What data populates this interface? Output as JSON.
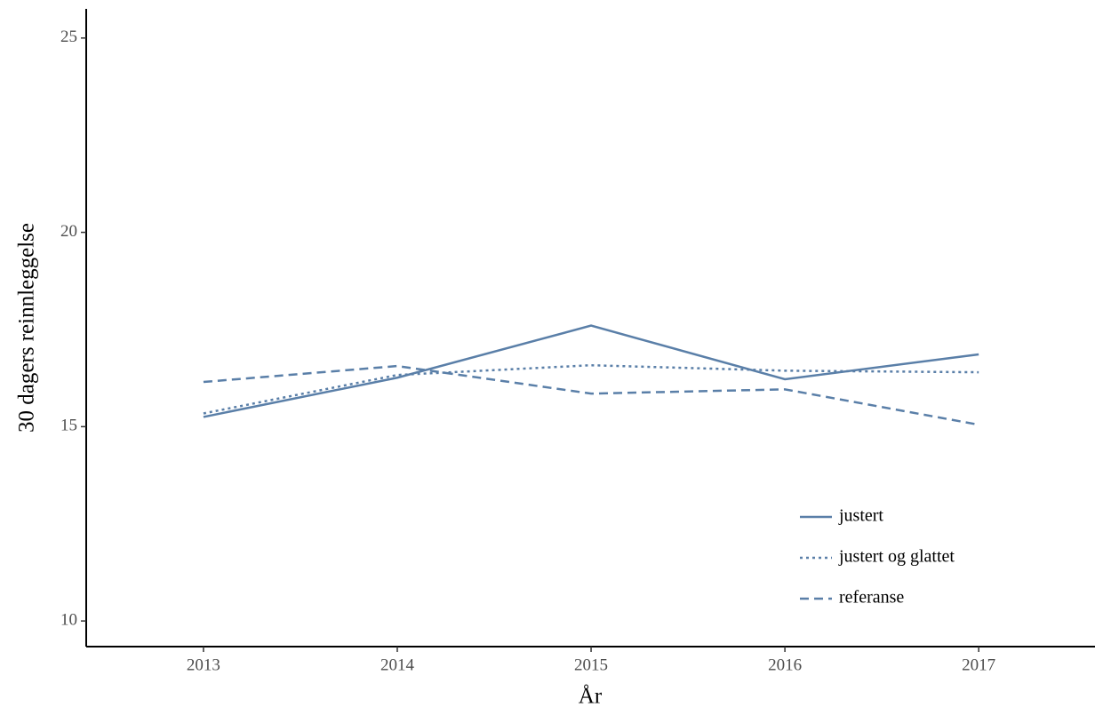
{
  "chart_data": {
    "type": "line",
    "x_label": "År",
    "y_label": "30 dagers reinnleggelse",
    "x": [
      2013,
      2014,
      2015,
      2016,
      2017
    ],
    "series": [
      {
        "name": "justert",
        "color": "#5a7fa8",
        "dash": "solid",
        "values": [
          15.25,
          16.26,
          17.6,
          16.22,
          16.86
        ]
      },
      {
        "name": "justert og glattet",
        "color": "#5a7fa8",
        "dash": "dotted",
        "values": [
          15.34,
          16.33,
          16.58,
          16.44,
          16.4
        ]
      },
      {
        "name": "referanse",
        "color": "#5a7fa8",
        "dash": "dashed",
        "values": [
          16.15,
          16.56,
          15.85,
          15.96,
          15.05
        ]
      }
    ],
    "xlim": [
      2012.395,
      2017.6
    ],
    "ylim": [
      9.34,
      25.75
    ],
    "xticks": [
      2013,
      2014,
      2015,
      2016,
      2017
    ],
    "yticks": [
      10,
      15,
      20,
      25
    ],
    "legend": "bottom-right",
    "grid": false
  }
}
